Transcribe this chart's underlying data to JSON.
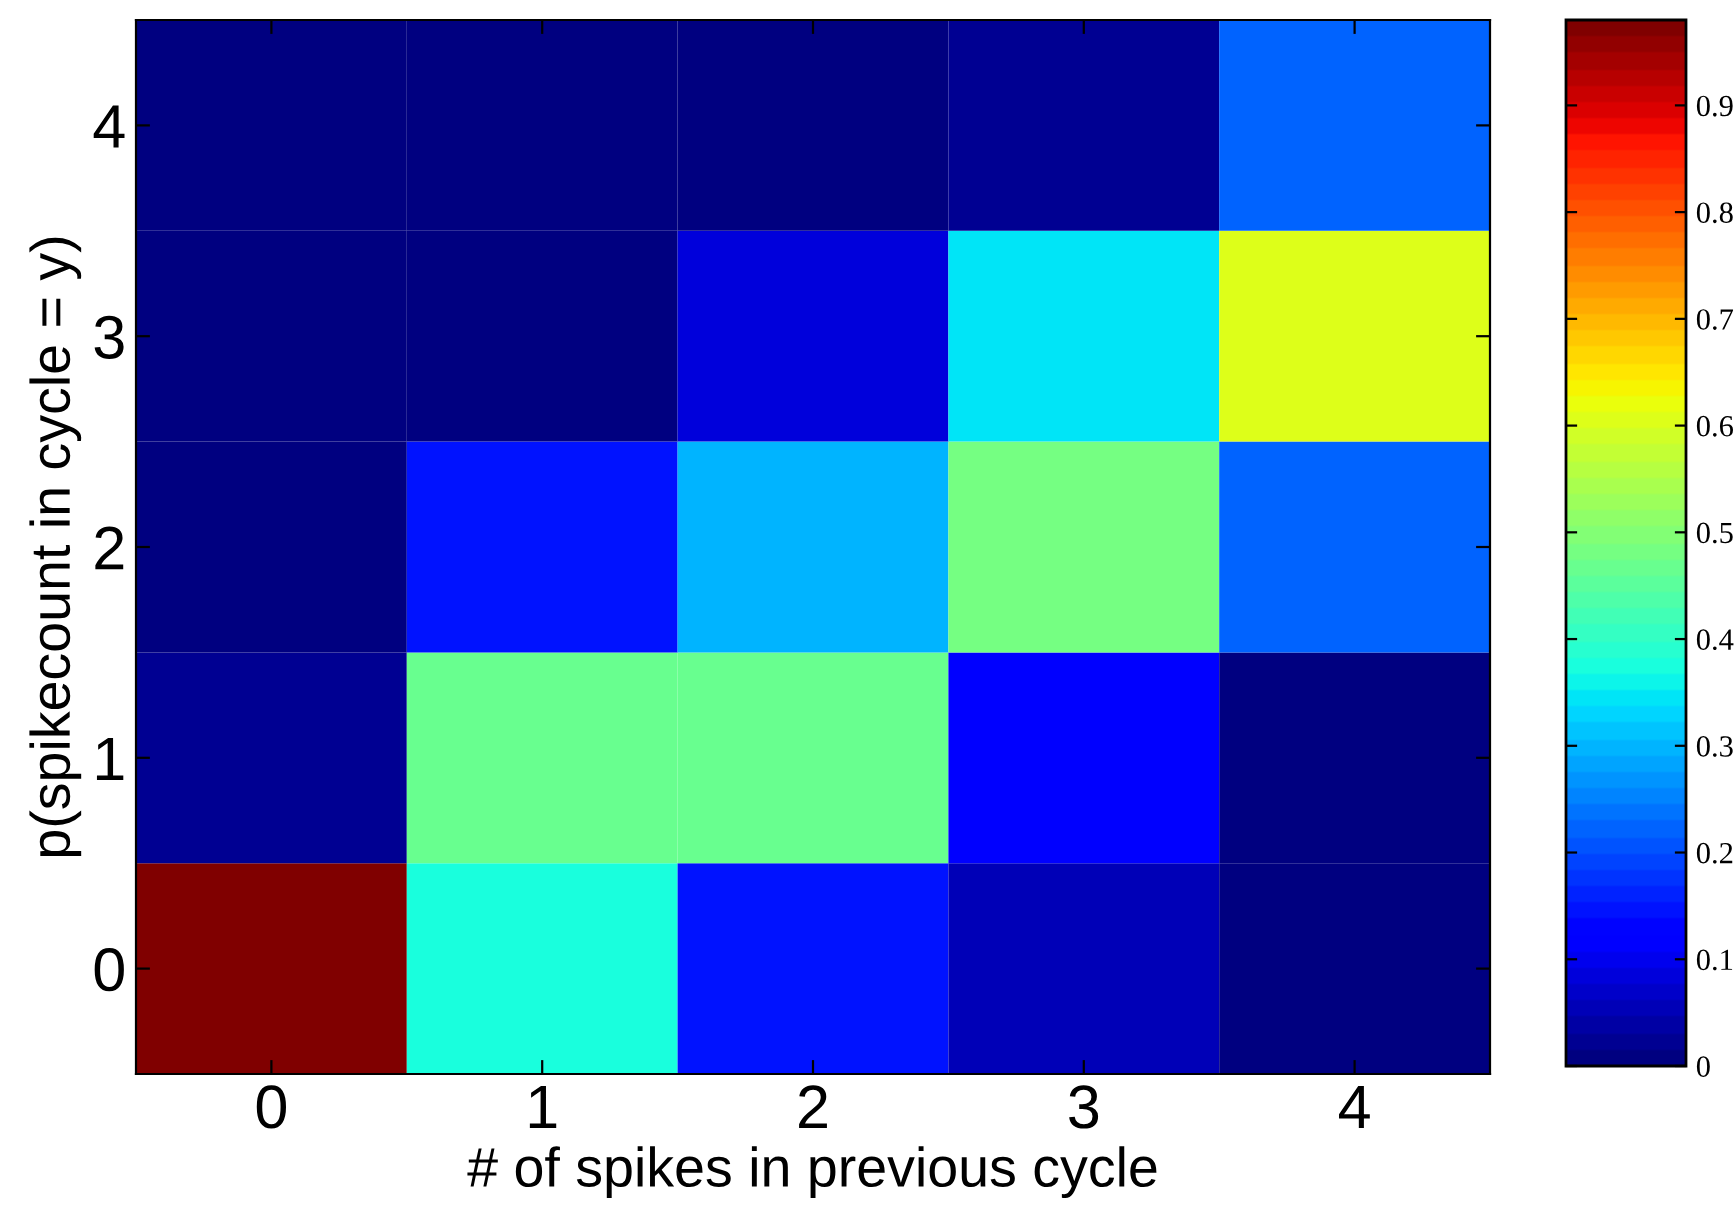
{
  "chart_data": {
    "type": "heatmap",
    "xlabel": "# of spikes in previous cycle",
    "ylabel": "p(spikecount in cycle = y)",
    "categories": [
      "0",
      "1",
      "2",
      "3",
      "4"
    ],
    "y_categories": [
      "4",
      "3",
      "2",
      "1",
      "0"
    ],
    "cells": [
      [
        0.0,
        0.0,
        0.0,
        0.03,
        0.22
      ],
      [
        0.0,
        0.0,
        0.09,
        0.35,
        0.6
      ],
      [
        0.0,
        0.14,
        0.3,
        0.48,
        0.22
      ],
      [
        0.03,
        0.47,
        0.47,
        0.11,
        0.01
      ],
      [
        0.98,
        0.38,
        0.14,
        0.05,
        0.01
      ]
    ],
    "clim": [
      0,
      0.98
    ],
    "cticks": [
      0,
      0.1,
      0.2,
      0.3,
      0.4,
      0.5,
      0.6,
      0.7,
      0.8,
      0.9
    ]
  }
}
